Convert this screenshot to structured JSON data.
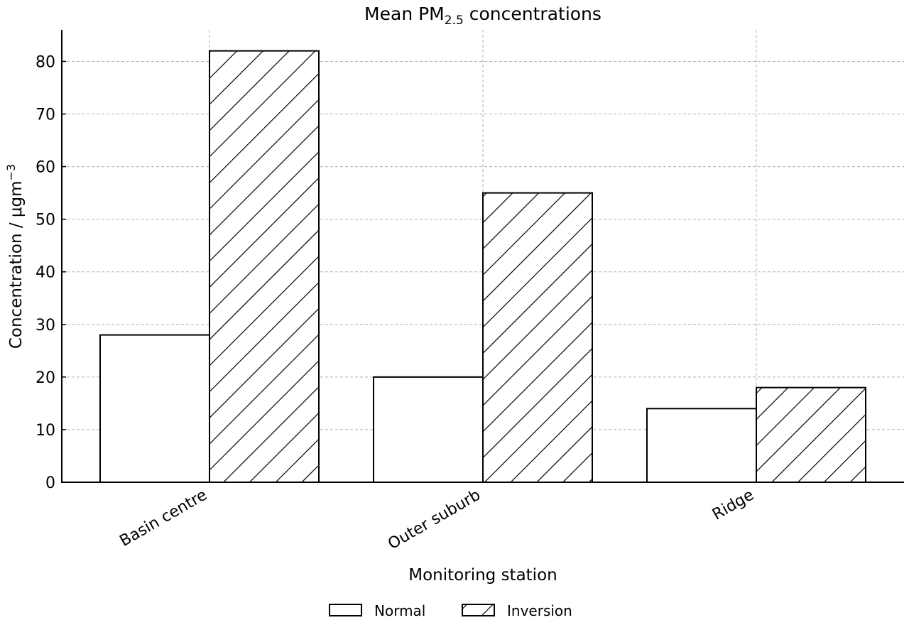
{
  "chart_data": {
    "type": "bar",
    "title": "Mean PM",
    "title_subscript": "2.5",
    "title_rest": " concentrations",
    "xlabel": "Monitoring station",
    "ylabel": "Concentration / μgm",
    "ylabel_superscript": "−3",
    "categories": [
      "Basin centre",
      "Outer suburb",
      "Ridge"
    ],
    "series": [
      {
        "name": "Normal",
        "values": [
          28,
          20,
          14
        ],
        "fill": "white"
      },
      {
        "name": "Inversion",
        "values": [
          82,
          55,
          18
        ],
        "fill": "hatch"
      }
    ],
    "ylim": [
      0,
      86
    ],
    "yticks": [
      0,
      10,
      20,
      30,
      40,
      50,
      60,
      70,
      80
    ],
    "grid": true,
    "legend_position": "bottom-center",
    "colors": {
      "edge": "#000000",
      "fill": "#ffffff",
      "grid": "#b0b0b0"
    }
  }
}
